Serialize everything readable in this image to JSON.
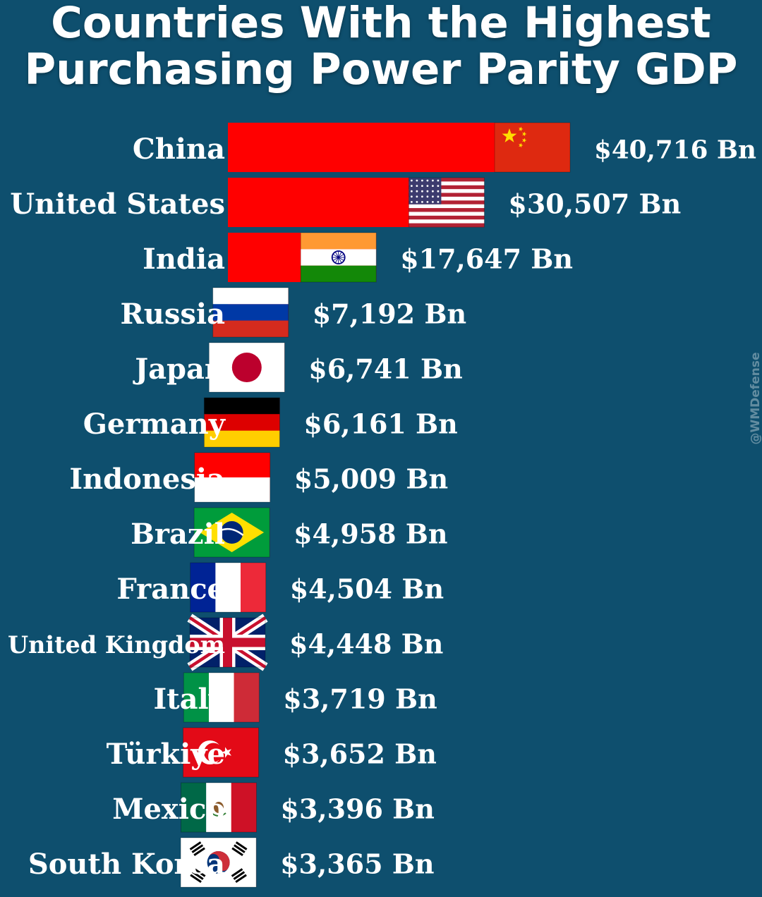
{
  "title": {
    "line1": "Countries With the Highest",
    "line2": "Purchasing Power Parity GDP"
  },
  "watermark": "@WMDefense",
  "colors": {
    "background": "#0e4f6e",
    "bar": "#ff0000",
    "text": "#ffffff"
  },
  "chart_data": {
    "type": "bar",
    "orientation": "horizontal",
    "unit": "Bn",
    "categories": [
      "China",
      "United States",
      "India",
      "Russia",
      "Japan",
      "Germany",
      "Indonesia",
      "Brazil",
      "France",
      "United Kingdom",
      "Italy",
      "Türkiye",
      "Mexico",
      "South Korea"
    ],
    "values": [
      40716,
      30507,
      17647,
      7192,
      6741,
      6161,
      5009,
      4958,
      4504,
      4448,
      3719,
      3652,
      3396,
      3365
    ],
    "value_labels": [
      "$40,716 Bn",
      "$30,507 Bn",
      "$17,647 Bn",
      "$7,192 Bn",
      "$6,741 Bn",
      "$6,161 Bn",
      "$5,009 Bn",
      "$4,958 Bn",
      "$4,504 Bn",
      "$4,448 Bn",
      "$3,719 Bn",
      "$3,652 Bn",
      "$3,396 Bn",
      "$3,365 Bn"
    ],
    "flag_icons": [
      "china-flag-icon",
      "us-flag-icon",
      "india-flag-icon",
      "russia-flag-icon",
      "japan-flag-icon",
      "germany-flag-icon",
      "indonesia-flag-icon",
      "brazil-flag-icon",
      "france-flag-icon",
      "uk-flag-icon",
      "italy-flag-icon",
      "turkiye-flag-icon",
      "mexico-flag-icon",
      "south-korea-flag-icon"
    ],
    "grid": false,
    "legend": "none"
  }
}
